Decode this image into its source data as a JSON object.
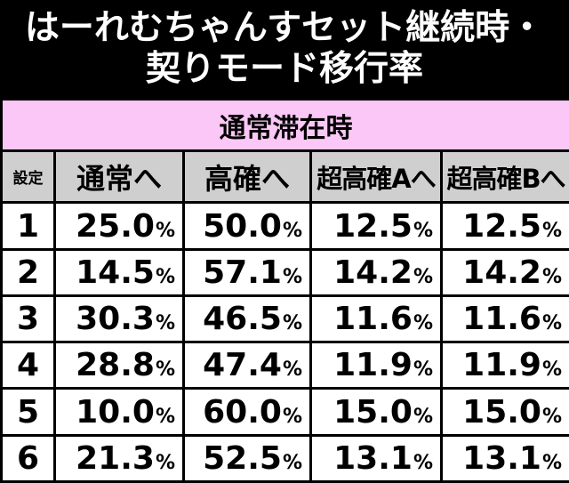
{
  "title": {
    "line1": "はーれむちゃんすセット継続時・",
    "line2": "契りモード移行率"
  },
  "section_label": "通常滞在時",
  "headers": [
    "設定",
    "通常へ",
    "高確へ",
    "超高確Aへ",
    "超高確Bへ"
  ],
  "percent_sign": "%",
  "rows": [
    {
      "setting": "1",
      "normal": "25.0",
      "high": "50.0",
      "super_a": "12.5",
      "super_b": "12.5"
    },
    {
      "setting": "2",
      "normal": "14.5",
      "high": "57.1",
      "super_a": "14.2",
      "super_b": "14.2"
    },
    {
      "setting": "3",
      "normal": "30.3",
      "high": "46.5",
      "super_a": "11.6",
      "super_b": "11.6"
    },
    {
      "setting": "4",
      "normal": "28.8",
      "high": "47.4",
      "super_a": "11.9",
      "super_b": "11.9"
    },
    {
      "setting": "5",
      "normal": "10.0",
      "high": "60.0",
      "super_a": "15.0",
      "super_b": "15.0"
    },
    {
      "setting": "6",
      "normal": "21.3",
      "high": "52.5",
      "super_a": "13.1",
      "super_b": "13.1"
    }
  ],
  "colors": {
    "title_bg": "#000000",
    "title_text": "#ffffff",
    "section_bg": "#fbc7f6",
    "header_bg": "#cfcfcf",
    "cell_bg": "#ffffff"
  }
}
